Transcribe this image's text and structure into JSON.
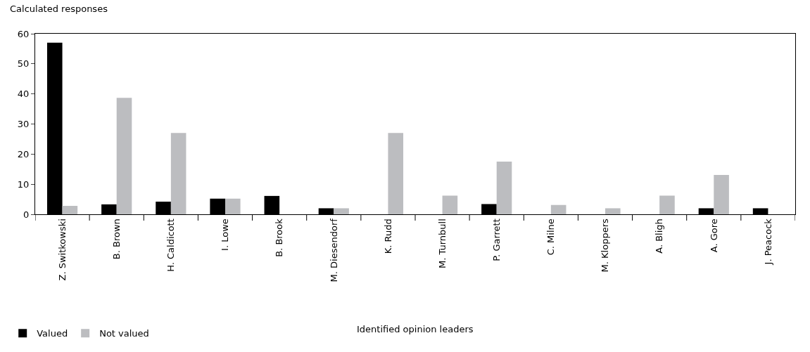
{
  "chart_data": {
    "type": "bar",
    "xlabel": "Identified opinion leaders",
    "ylabel": "Calculated responses",
    "categories": [
      "Z. Switkowski",
      "B. Brown",
      "H. Caldicott",
      "I. Lowe",
      "B. Brook",
      "M. Diesendorf",
      "K. Rudd",
      "M. Turnbull",
      "P. Garrett",
      "C. Milne",
      "M. Kloppers",
      "A. Bligh",
      "A. Gore",
      "J. Peacock"
    ],
    "series": [
      {
        "name": "Valued",
        "color": "#000000",
        "values": [
          57,
          3.3,
          4.2,
          5.2,
          6.1,
          2,
          null,
          null,
          3.4,
          null,
          null,
          null,
          2,
          2
        ]
      },
      {
        "name": "Not valued",
        "color": "#bcbdc0",
        "values": [
          2.8,
          38.7,
          27,
          5.2,
          null,
          2,
          27,
          6.2,
          17.5,
          3.1,
          2,
          6.2,
          13.1,
          null
        ]
      }
    ],
    "ylim": [
      0,
      60
    ],
    "yticks": [
      0,
      10,
      20,
      30,
      40,
      50,
      60
    ],
    "grid": false,
    "legend": "bottom left"
  }
}
